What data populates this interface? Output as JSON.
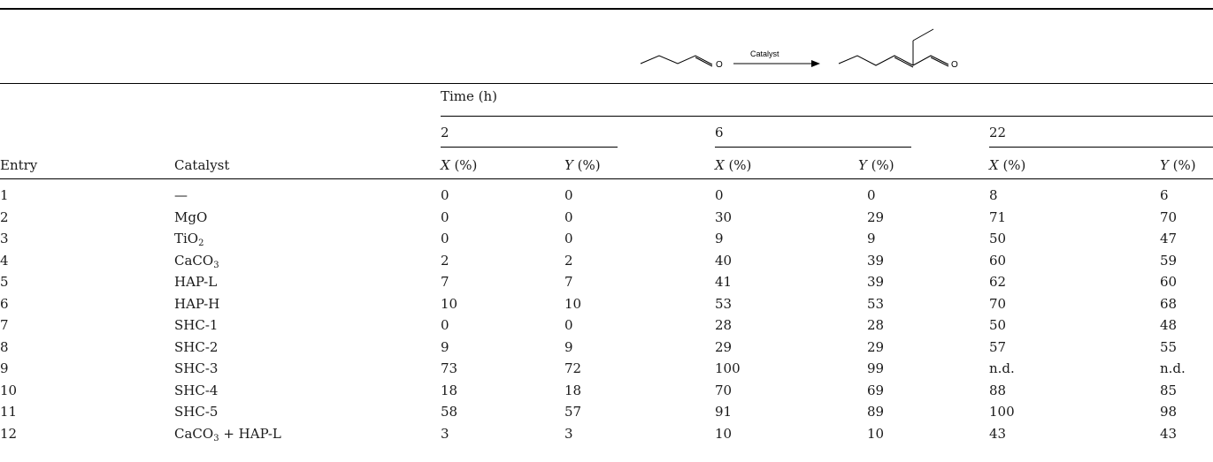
{
  "scheme": {
    "arrow_label": "Catalyst",
    "o_symbol": "O"
  },
  "header": {
    "time_label": "Time (h)",
    "times": [
      "2",
      "6",
      "22"
    ],
    "entry_label": "Entry",
    "catalyst_label": "Catalyst",
    "x_sym": "X",
    "y_sym": "Y",
    "unit": " (%)"
  },
  "rows": [
    {
      "entry": "1",
      "catalyst": "—",
      "x2": "0",
      "y2": "0",
      "x6": "0",
      "y6": "0",
      "x22": "8",
      "y22": "6"
    },
    {
      "entry": "2",
      "catalyst": "MgO",
      "x2": "0",
      "y2": "0",
      "x6": "30",
      "y6": "29",
      "x22": "71",
      "y22": "70"
    },
    {
      "entry": "3",
      "catalyst": "TiO",
      "catalyst_sub": "2",
      "x2": "0",
      "y2": "0",
      "x6": "9",
      "y6": "9",
      "x22": "50",
      "y22": "47"
    },
    {
      "entry": "4",
      "catalyst": "CaCO",
      "catalyst_sub": "3",
      "x2": "2",
      "y2": "2",
      "x6": "40",
      "y6": "39",
      "x22": "60",
      "y22": "59"
    },
    {
      "entry": "5",
      "catalyst": "HAP-L",
      "x2": "7",
      "y2": "7",
      "x6": "41",
      "y6": "39",
      "x22": "62",
      "y22": "60"
    },
    {
      "entry": "6",
      "catalyst": "HAP-H",
      "x2": "10",
      "y2": "10",
      "x6": "53",
      "y6": "53",
      "x22": "70",
      "y22": "68"
    },
    {
      "entry": "7",
      "catalyst": "SHC-1",
      "x2": "0",
      "y2": "0",
      "x6": "28",
      "y6": "28",
      "x22": "50",
      "y22": "48"
    },
    {
      "entry": "8",
      "catalyst": "SHC-2",
      "x2": "9",
      "y2": "9",
      "x6": "29",
      "y6": "29",
      "x22": "57",
      "y22": "55"
    },
    {
      "entry": "9",
      "catalyst": "SHC-3",
      "x2": "73",
      "y2": "72",
      "x6": "100",
      "y6": "99",
      "x22": "n.d.",
      "y22": "n.d."
    },
    {
      "entry": "10",
      "catalyst": "SHC-4",
      "x2": "18",
      "y2": "18",
      "x6": "70",
      "y6": "69",
      "x22": "88",
      "y22": "85"
    },
    {
      "entry": "11",
      "catalyst": "SHC-5",
      "x2": "58",
      "y2": "57",
      "x6": "91",
      "y6": "89",
      "x22": "100",
      "y22": "98"
    },
    {
      "entry": "12",
      "catalyst": "CaCO",
      "catalyst_sub": "3",
      "catalyst_suffix": " + HAP-L",
      "x2": "3",
      "y2": "3",
      "x6": "10",
      "y6": "10",
      "x22": "43",
      "y22": "43"
    }
  ]
}
